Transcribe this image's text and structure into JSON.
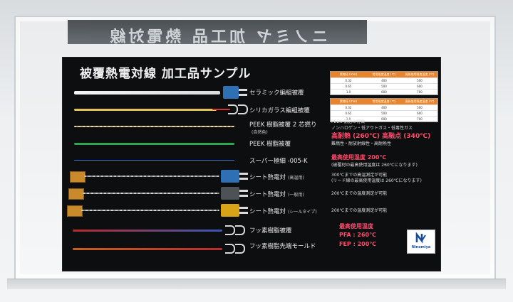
{
  "reflection_text": "ニノミヤ 加工品 熱電対線",
  "board": {
    "title": "被覆熱電対線 加工品サンプル",
    "items": [
      {
        "label": "セラミック編組被覆",
        "sub": ""
      },
      {
        "label": "シリカガラス編組被覆",
        "sub": ""
      },
      {
        "label": "PEEK 樹脂被覆 2 芯撚り",
        "sub": "(自然色)"
      },
      {
        "label": "PEEK 樹脂被覆",
        "sub": ""
      },
      {
        "label": "スーパー極細 -005-K",
        "sub": ""
      },
      {
        "label": "シート熱電対",
        "sub": "(高温用)"
      },
      {
        "label": "シート熱電対",
        "sub": "(一般用)"
      },
      {
        "label": "シート熱電対",
        "sub": "(シールタイプ)"
      },
      {
        "label": "フッ素樹脂被覆",
        "sub": ""
      },
      {
        "label": "フッ素樹脂先端モールド",
        "sub": ""
      }
    ],
    "peek_notes": {
      "heading": "PEEK 樹脂の特徴",
      "line1": "ノンハロゲン・低アウトガス・低毒性ガス",
      "highlight": "高耐熱 (260℃) 高融点 (340℃)",
      "line3": "難燃性・耐放射線性・高耐熱性"
    },
    "super_notes": {
      "highlight": "最高使用温度 200℃",
      "line": "(被覆材の最高使用温度は 260℃になります)"
    },
    "sheet_high_notes": {
      "line1": "300℃までの高温測定が可能",
      "line2": "(リード線の最高使用温度は 260℃になります)"
    },
    "sheet_general_note": "200℃までの温度測定が可能",
    "sheet_seal_note": "200℃までの温度測定が可能",
    "fluoro_notes": {
      "heading": "最高使用温度",
      "pfa": "PFA : 260℃",
      "fep": "FEP : 200℃"
    },
    "tables": [
      {
        "headers": [
          "素線径 (mm)",
          "常用限度温度 (℃)",
          "過熱使用限度温度 (℃)"
        ],
        "rows": [
          [
            "0.32",
            "400",
            "500"
          ],
          [
            "0.65",
            "500",
            "600"
          ],
          [
            "1.0",
            "600",
            "700"
          ]
        ]
      },
      {
        "headers": [
          "素線径 (mm)",
          "常用限度温度 (℃)",
          "過熱使用限度温度 (℃)"
        ],
        "rows": [
          [
            "0.32",
            "400",
            "500"
          ],
          [
            "0.65",
            "500",
            "600"
          ],
          [
            "1.0",
            "600",
            "700"
          ]
        ]
      }
    ],
    "logo_text": "Ninomiya"
  },
  "colors": {
    "board": "#0d0e10",
    "highlight": "#ff4a6a",
    "table_header": "#e8852c",
    "connector_blue": "#2f6fb3",
    "connector_gray": "#4d5256",
    "connector_yellow": "#d9a318",
    "logo_blue": "#1a4a9a"
  }
}
